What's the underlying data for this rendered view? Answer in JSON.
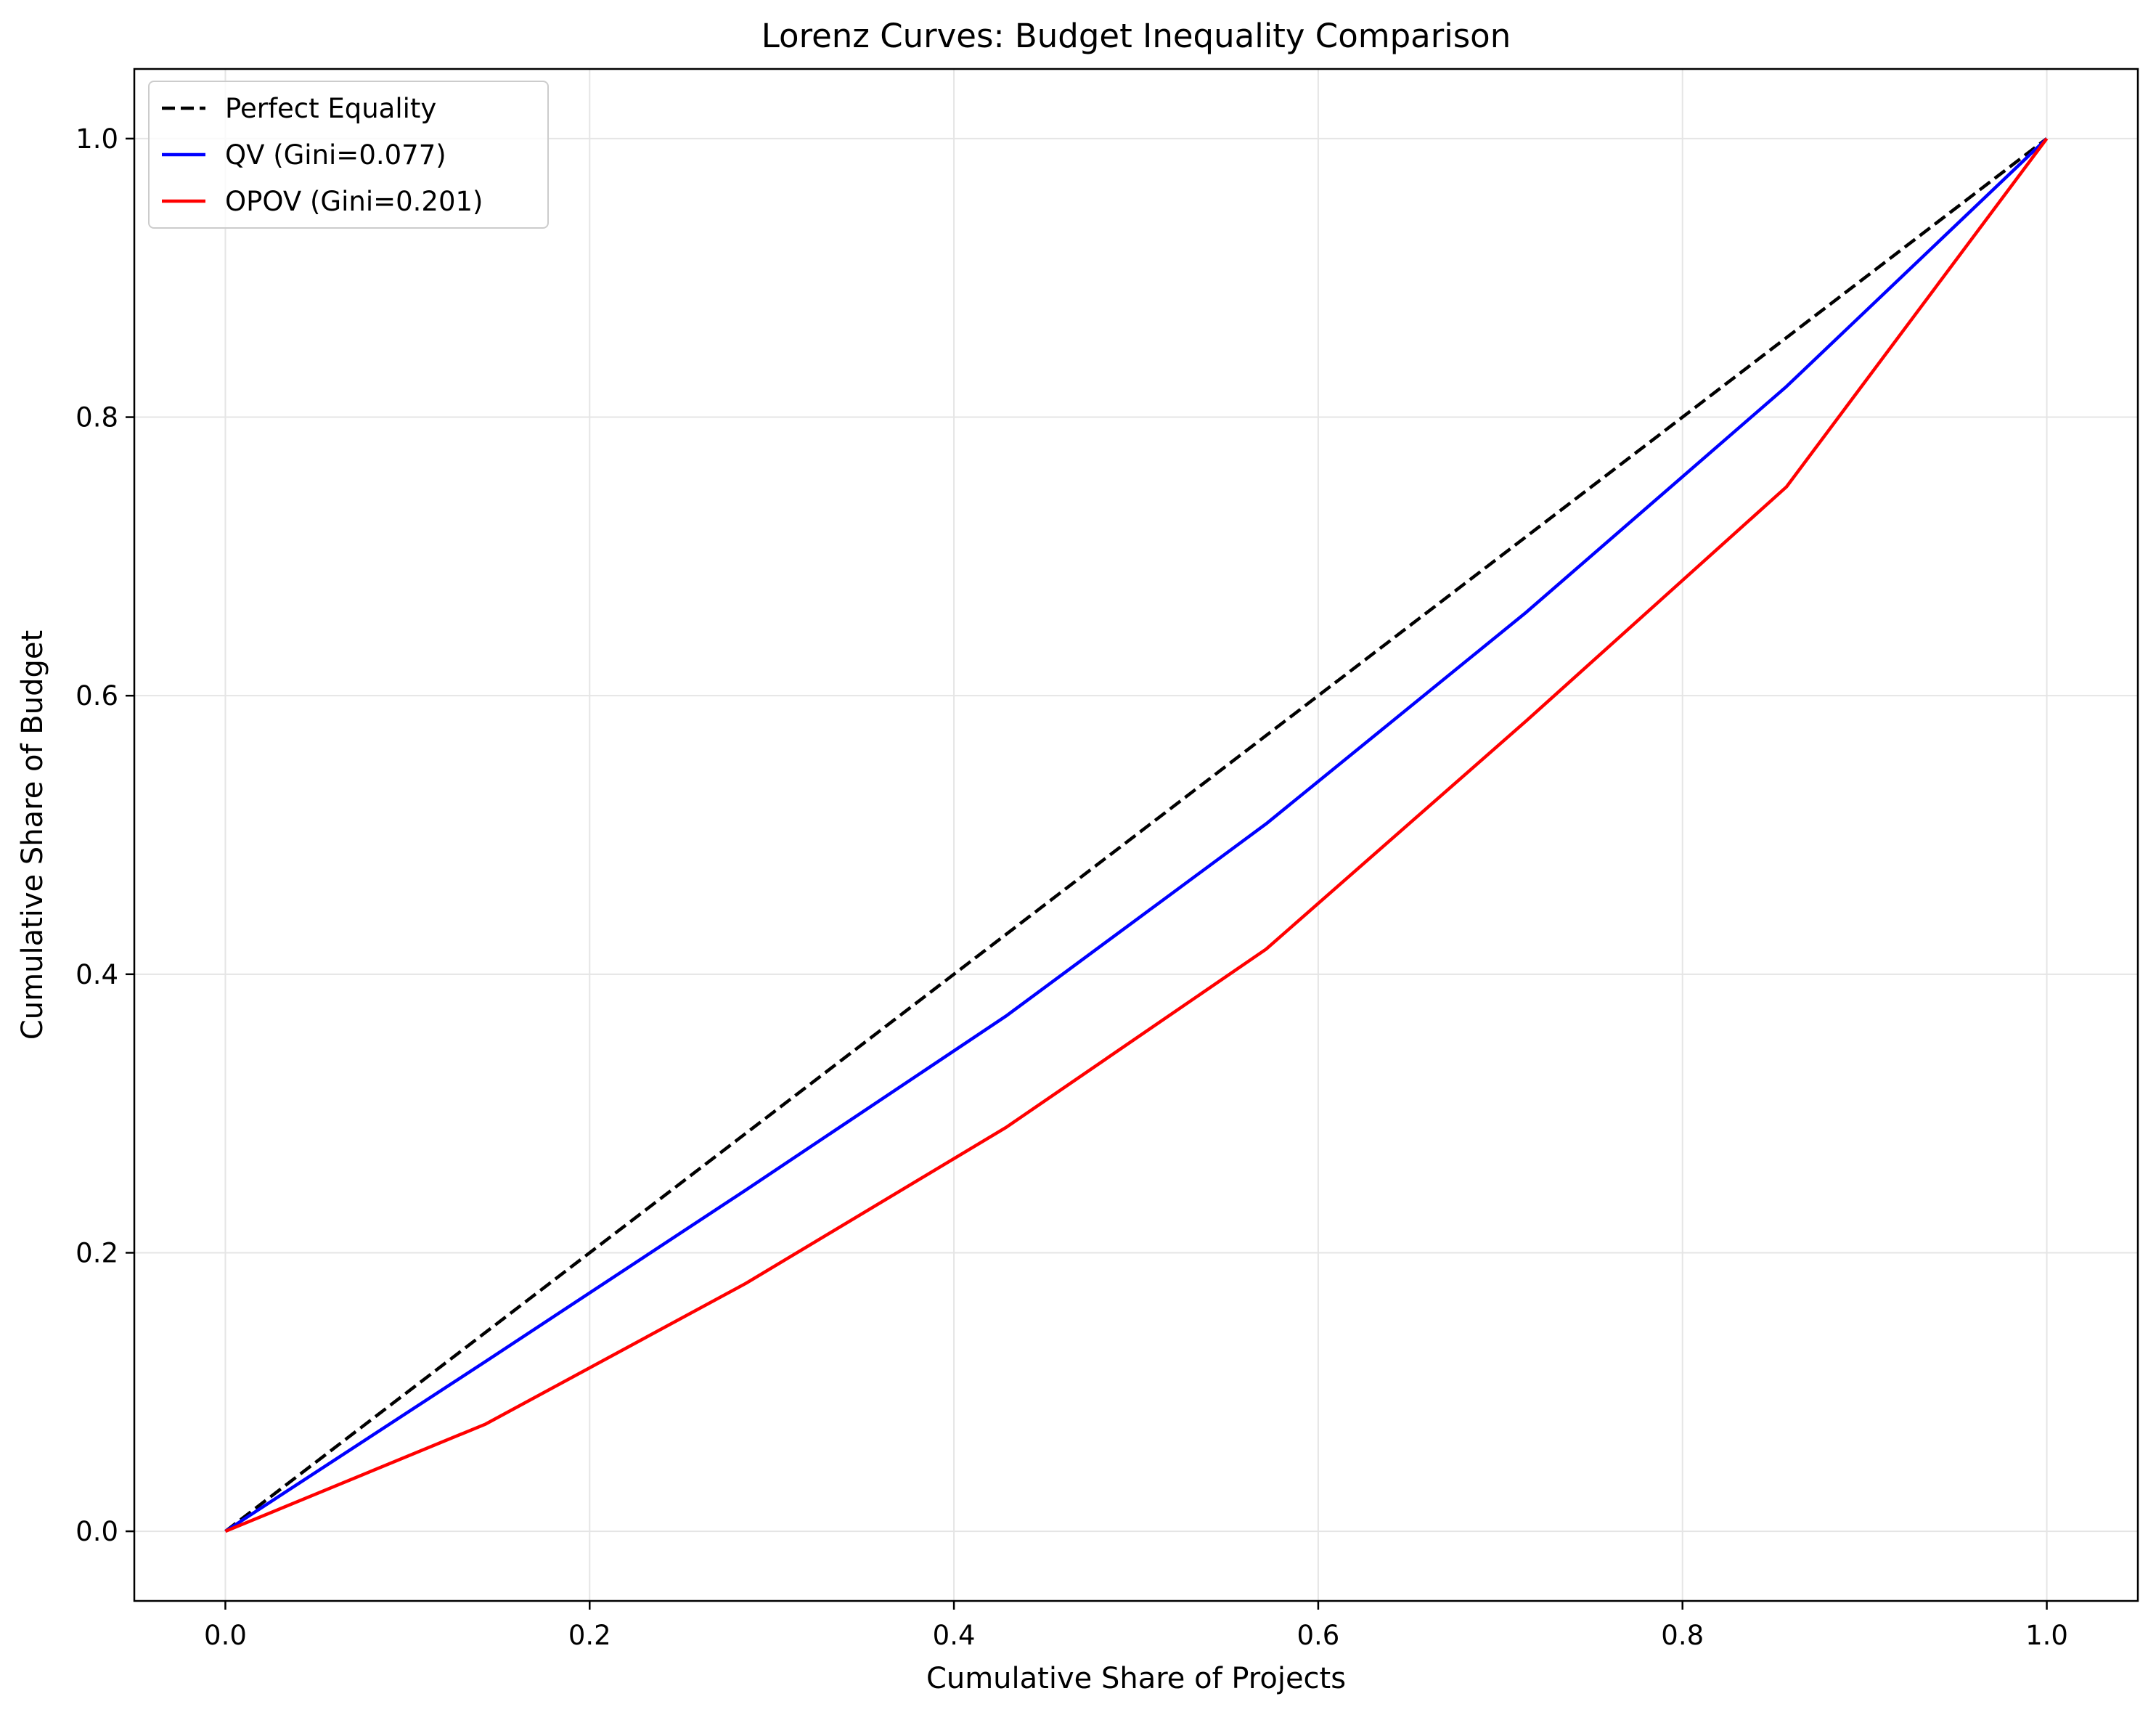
{
  "chart_data": {
    "type": "line",
    "title": "Lorenz Curves: Budget Inequality Comparison",
    "xlabel": "Cumulative Share of Projects",
    "ylabel": "Cumulative Share of Budget",
    "xlim": [
      -0.05,
      1.05
    ],
    "ylim": [
      -0.05,
      1.05
    ],
    "x_ticks": [
      0.0,
      0.2,
      0.4,
      0.6,
      0.8,
      1.0
    ],
    "y_ticks": [
      0.0,
      0.2,
      0.4,
      0.6,
      0.8,
      1.0
    ],
    "x_tick_labels": [
      "0.0",
      "0.2",
      "0.4",
      "0.6",
      "0.8",
      "1.0"
    ],
    "y_tick_labels": [
      "0.0",
      "0.2",
      "0.4",
      "0.6",
      "0.8",
      "1.0"
    ],
    "grid": true,
    "legend_position": "upper-left",
    "series": [
      {
        "name": "Perfect Equality",
        "color": "#000000",
        "style": "dashed",
        "x": [
          0.0,
          1.0
        ],
        "y": [
          0.0,
          1.0
        ]
      },
      {
        "name": "QV (Gini=0.077)",
        "color": "#0000ff",
        "style": "solid",
        "x": [
          0.0,
          0.1429,
          0.2857,
          0.4286,
          0.5714,
          0.7143,
          0.8571,
          1.0
        ],
        "y": [
          0.0,
          0.122,
          0.245,
          0.37,
          0.508,
          0.66,
          0.822,
          1.0
        ]
      },
      {
        "name": "OPOV (Gini=0.201)",
        "color": "#ff0000",
        "style": "solid",
        "x": [
          0.0,
          0.1429,
          0.2857,
          0.4286,
          0.5714,
          0.7143,
          0.8571,
          1.0
        ],
        "y": [
          0.0,
          0.077,
          0.178,
          0.29,
          0.418,
          0.582,
          0.75,
          1.0
        ]
      }
    ]
  }
}
